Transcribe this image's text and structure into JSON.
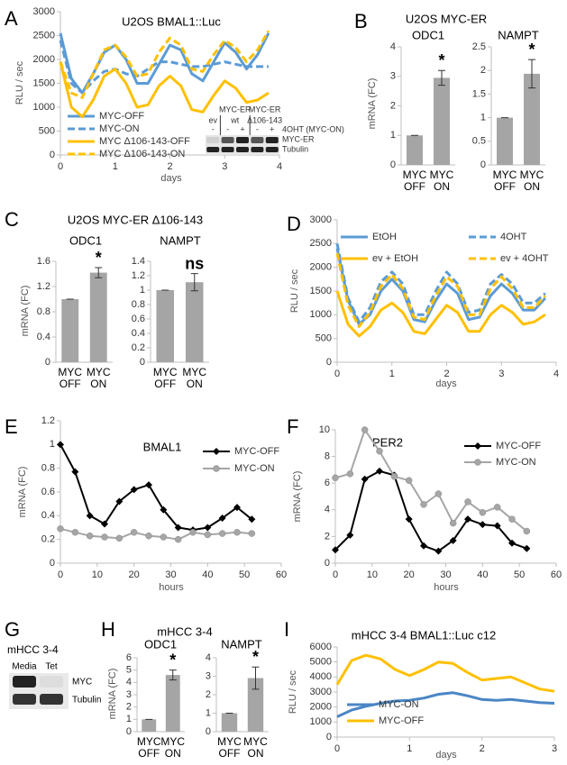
{
  "chart_data": [
    {
      "type": "line",
      "panel": "A",
      "title": "U2OS BMAL1::Luc",
      "ylabel": "RLU / sec",
      "xlabel": "days",
      "xlim": [
        0,
        4
      ],
      "xticks": [
        0,
        1,
        2,
        3,
        4
      ],
      "ylim": [
        0,
        3000
      ],
      "yticks": [
        0,
        500,
        1000,
        1500,
        2000,
        2500,
        3000
      ],
      "x": [
        0,
        0.2,
        0.4,
        0.6,
        0.8,
        1.0,
        1.2,
        1.4,
        1.6,
        1.8,
        2.0,
        2.2,
        2.4,
        2.6,
        2.8,
        3.0,
        3.2,
        3.4,
        3.6,
        3.8
      ],
      "series": [
        {
          "name": "MYC-OFF",
          "color": "#5b9bd5",
          "dash": false,
          "values": [
            2550,
            1600,
            1300,
            1700,
            2150,
            2300,
            2000,
            1500,
            1500,
            1900,
            2300,
            2200,
            1700,
            1550,
            1950,
            2350,
            2150,
            1800,
            2100,
            2550
          ]
        },
        {
          "name": "MYC-ON",
          "color": "#5b9bd5",
          "dash": true,
          "values": [
            2400,
            1500,
            1300,
            1550,
            1750,
            1800,
            1700,
            1650,
            1800,
            1950,
            1950,
            1900,
            1850,
            1850,
            1900,
            1950,
            1900,
            1850,
            1850,
            1850
          ]
        },
        {
          "name": "MYC Δ106-143-OFF",
          "color": "#ffc000",
          "dash": false,
          "values": [
            1950,
            1000,
            800,
            1150,
            1650,
            1800,
            1500,
            1000,
            1050,
            1450,
            1650,
            1450,
            950,
            900,
            1250,
            1550,
            1400,
            1100,
            1150,
            1300
          ]
        },
        {
          "name": "MYC Δ106-143-ON",
          "color": "#ffc000",
          "dash": true,
          "values": [
            1950,
            1300,
            1200,
            1700,
            2200,
            2300,
            2050,
            1650,
            1700,
            2150,
            2450,
            2300,
            1800,
            1750,
            2100,
            2400,
            2250,
            1950,
            2200,
            2600
          ]
        }
      ],
      "inset": {
        "groups": [
          {
            "name": "ev",
            "lanes": 1
          },
          {
            "name": "MYC-ER",
            "sub": "wt",
            "lanes": 2
          },
          {
            "name": "MYC-ER",
            "sub": "Δ106-143",
            "lanes": 2
          }
        ],
        "signs": [
          "-",
          "-",
          "+",
          "-",
          "+"
        ],
        "treatment": "4OHT (MYC-ON)",
        "rows": [
          "MYC-ER",
          "Tubulin"
        ]
      }
    },
    {
      "type": "bar",
      "panel": "B",
      "title": "U2OS MYC-ER",
      "ylabel": "mRNA (FC)",
      "color": "#a5a5a5",
      "subplots": [
        {
          "title": "ODC1",
          "categories": [
            [
              "MYC",
              "OFF"
            ],
            [
              "MYC",
              "ON"
            ]
          ],
          "values": [
            1,
            2.95
          ],
          "errors": [
            0,
            0.25
          ],
          "annotations": [
            null,
            "*"
          ],
          "ylim": [
            0,
            4
          ],
          "yticks": [
            0,
            1,
            2,
            3,
            4
          ]
        },
        {
          "title": "NAMPT",
          "categories": [
            [
              "MYC",
              "OFF"
            ],
            [
              "MYC",
              "ON"
            ]
          ],
          "values": [
            1,
            1.93
          ],
          "errors": [
            0,
            0.3
          ],
          "annotations": [
            null,
            "*"
          ],
          "ylim": [
            0,
            2.5
          ],
          "yticks": [
            0,
            0.5,
            1,
            1.5,
            2,
            2.5
          ]
        }
      ]
    },
    {
      "type": "bar",
      "panel": "C",
      "title": "U2OS MYC-ER Δ106-143",
      "ylabel": "mRNA (FC)",
      "color": "#a5a5a5",
      "subplots": [
        {
          "title": "ODC1",
          "categories": [
            [
              "MYC",
              "OFF"
            ],
            [
              "MYC",
              "ON"
            ]
          ],
          "values": [
            1,
            1.42
          ],
          "errors": [
            0,
            0.08
          ],
          "annotations": [
            null,
            "*"
          ],
          "ylim": [
            0,
            1.6
          ],
          "yticks": [
            0,
            0.4,
            0.8,
            1.2,
            1.6
          ]
        },
        {
          "title": "NAMPT",
          "categories": [
            [
              "MYC",
              "OFF"
            ],
            [
              "MYC",
              "ON"
            ]
          ],
          "values": [
            1,
            1.11
          ],
          "errors": [
            0,
            0.12
          ],
          "annotations": [
            null,
            "ns"
          ],
          "ylim": [
            0,
            1.4
          ],
          "yticks": [
            0,
            0.2,
            0.4,
            0.6,
            0.8,
            1,
            1.2,
            1.4
          ]
        }
      ]
    },
    {
      "type": "line",
      "panel": "D",
      "ylabel": "RLU / sec",
      "xlabel": "days",
      "xlim": [
        0,
        4
      ],
      "xticks": [
        0,
        1,
        2,
        3,
        4
      ],
      "ylim": [
        0,
        3000
      ],
      "yticks": [
        0,
        500,
        1000,
        1500,
        2000,
        2500,
        3000
      ],
      "x": [
        0,
        0.2,
        0.4,
        0.6,
        0.8,
        1.0,
        1.2,
        1.4,
        1.6,
        1.8,
        2.0,
        2.2,
        2.4,
        2.6,
        2.8,
        3.0,
        3.2,
        3.4,
        3.6,
        3.8
      ],
      "series": [
        {
          "name": "EtOH",
          "color": "#5b9bd5",
          "dash": false,
          "values": [
            2400,
            1300,
            800,
            1000,
            1500,
            1750,
            1500,
            900,
            850,
            1300,
            1650,
            1450,
            900,
            950,
            1400,
            1650,
            1450,
            1100,
            1100,
            1350
          ]
        },
        {
          "name": "4OHT",
          "color": "#5b9bd5",
          "dash": true,
          "values": [
            2500,
            1350,
            850,
            1150,
            1700,
            1900,
            1650,
            1000,
            1000,
            1500,
            1900,
            1650,
            1050,
            1100,
            1650,
            1850,
            1650,
            1250,
            1250,
            1450
          ]
        },
        {
          "name": "ev + EtOH",
          "color": "#ffc000",
          "dash": false,
          "values": [
            1500,
            800,
            550,
            750,
            1100,
            1250,
            1050,
            650,
            600,
            900,
            1200,
            1050,
            650,
            650,
            1000,
            1200,
            1050,
            800,
            850,
            1000
          ]
        },
        {
          "name": "ev + 4OHT",
          "color": "#ffc000",
          "dash": true,
          "values": [
            2300,
            1200,
            750,
            1050,
            1600,
            1850,
            1550,
            950,
            900,
            1400,
            1800,
            1600,
            1000,
            1000,
            1550,
            1800,
            1550,
            1150,
            1150,
            1400
          ]
        }
      ]
    },
    {
      "type": "line",
      "panel": "E",
      "title": "BMAL1",
      "ylabel": "mRNA (FC)",
      "xlabel": "hours",
      "xlim": [
        0,
        60
      ],
      "xticks": [
        0,
        10,
        20,
        30,
        40,
        50,
        60
      ],
      "ylim": [
        0,
        1.2
      ],
      "yticks": [
        0,
        0.2,
        0.4,
        0.6,
        0.8,
        1,
        1.2
      ],
      "x": [
        0,
        4,
        8,
        12,
        16,
        20,
        24,
        28,
        32,
        36,
        40,
        44,
        48,
        52
      ],
      "series": [
        {
          "name": "MYC-OFF",
          "color": "#000000",
          "marker": "diamond",
          "values": [
            1,
            0.77,
            0.4,
            0.33,
            0.52,
            0.62,
            0.66,
            0.45,
            0.3,
            0.28,
            0.3,
            0.38,
            0.47,
            0.37
          ]
        },
        {
          "name": "MYC-ON",
          "color": "#a6a6a6",
          "marker": "circle",
          "values": [
            0.29,
            0.26,
            0.23,
            0.22,
            0.21,
            0.26,
            0.23,
            0.22,
            0.2,
            0.26,
            0.24,
            0.25,
            0.26,
            0.25
          ]
        }
      ]
    },
    {
      "type": "line",
      "panel": "F",
      "title": "PER2",
      "ylabel": "mRNA (FC)",
      "xlabel": "hours",
      "xlim": [
        0,
        60
      ],
      "xticks": [
        0,
        10,
        20,
        30,
        40,
        50,
        60
      ],
      "ylim": [
        0,
        10
      ],
      "yticks": [
        0,
        2,
        4,
        6,
        8,
        10
      ],
      "x": [
        0,
        4,
        8,
        12,
        16,
        20,
        24,
        28,
        32,
        36,
        40,
        44,
        48,
        52
      ],
      "series": [
        {
          "name": "MYC-OFF",
          "color": "#000000",
          "marker": "diamond",
          "values": [
            1,
            2.1,
            6.3,
            6.9,
            6.6,
            3.3,
            1.3,
            0.9,
            1.7,
            3.3,
            2.9,
            2.8,
            1.5,
            1.1
          ]
        },
        {
          "name": "MYC-ON",
          "color": "#a6a6a6",
          "marker": "circle",
          "values": [
            6.4,
            6.7,
            10,
            8.4,
            6.5,
            6.2,
            4.4,
            5.2,
            3,
            4.6,
            3.8,
            4.2,
            3.3,
            2.4
          ]
        }
      ]
    },
    {
      "type": "bar",
      "panel": "H",
      "title": "mHCC 3-4",
      "ylabel": "mRNA (FC)",
      "color": "#a5a5a5",
      "subplots": [
        {
          "title": "ODC1",
          "categories": [
            [
              "MYC",
              "OFF"
            ],
            [
              "MYC",
              "ON"
            ]
          ],
          "values": [
            1,
            4.6
          ],
          "errors": [
            0,
            0.4
          ],
          "annotations": [
            null,
            "*"
          ],
          "ylim": [
            0,
            6
          ],
          "yticks": [
            0,
            1,
            2,
            3,
            4,
            5,
            6
          ]
        },
        {
          "title": "NAMPT",
          "categories": [
            [
              "MYC",
              "OFF"
            ],
            [
              "MYC",
              "ON"
            ]
          ],
          "values": [
            1,
            2.9
          ],
          "errors": [
            0,
            0.6
          ],
          "annotations": [
            null,
            "*"
          ],
          "ylim": [
            0,
            4
          ],
          "yticks": [
            0,
            1,
            2,
            3,
            4
          ]
        }
      ]
    },
    {
      "type": "line",
      "panel": "I",
      "title": "mHCC 3-4 BMAL1::Luc c12",
      "ylabel": "RLU / sec",
      "xlabel": "days",
      "xlim": [
        0,
        3
      ],
      "xticks": [
        0,
        1,
        2,
        3
      ],
      "ylim": [
        0,
        6000
      ],
      "yticks": [
        0,
        1000,
        2000,
        3000,
        4000,
        5000,
        6000
      ],
      "x": [
        0,
        0.2,
        0.4,
        0.6,
        0.8,
        1.0,
        1.2,
        1.4,
        1.6,
        1.8,
        2.0,
        2.2,
        2.4,
        2.6,
        2.8,
        3.0
      ],
      "series": [
        {
          "name": "MYC-ON",
          "color": "#4a86c5",
          "dash": false,
          "values": [
            1350,
            1800,
            2050,
            2250,
            2400,
            2450,
            2600,
            2850,
            2950,
            2750,
            2500,
            2450,
            2500,
            2400,
            2300,
            2250
          ]
        },
        {
          "name": "MYC-OFF",
          "color": "#ffc000",
          "dash": false,
          "values": [
            3500,
            5100,
            5450,
            5200,
            4500,
            4100,
            4500,
            5000,
            4900,
            4300,
            3800,
            3900,
            4000,
            3600,
            3200,
            3050
          ]
        }
      ]
    }
  ],
  "blots": [
    {
      "panel": "G",
      "title": "mHCC 3-4",
      "lanes": [
        "Media",
        "Tet"
      ],
      "rows": [
        "MYC",
        "Tubulin"
      ]
    }
  ]
}
